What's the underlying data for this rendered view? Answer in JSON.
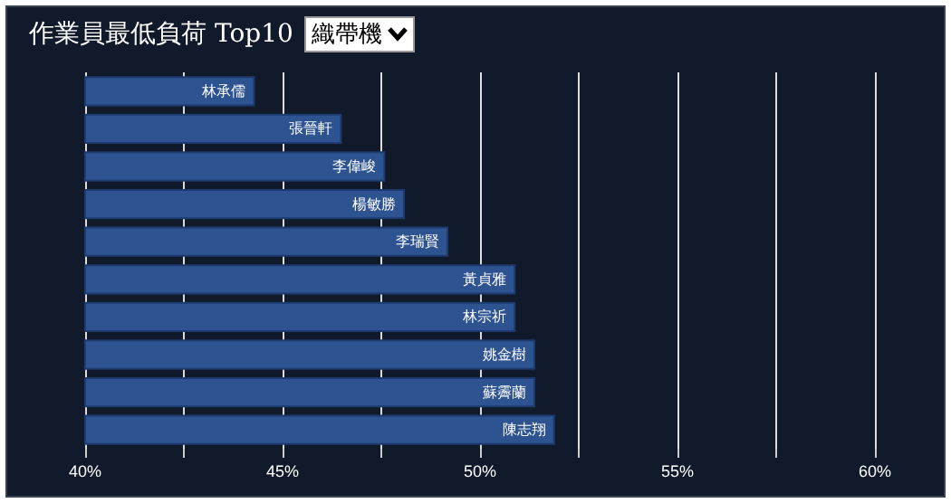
{
  "chart_data": {
    "type": "bar",
    "orientation": "horizontal",
    "title": "作業員最低負荷 Top10",
    "annotations": [
      "織帶機"
    ],
    "categories": [
      "林承儒",
      "張晉軒",
      "李偉峻",
      "楊敏勝",
      "李瑞賢",
      "黃貞雅",
      "林宗祈",
      "姚金樹",
      "蘇霽蘭",
      "陳志翔"
    ],
    "values": [
      44.3,
      46.5,
      47.6,
      48.1,
      49.2,
      50.9,
      50.9,
      51.4,
      51.4,
      51.9
    ],
    "color": "#2e5391",
    "xlim": [
      40,
      60
    ],
    "xticks": [
      {
        "value": 40,
        "label": "40%"
      },
      {
        "value": 42.5,
        "label": null
      },
      {
        "value": 45,
        "label": "45%"
      },
      {
        "value": 47.5,
        "label": null
      },
      {
        "value": 50,
        "label": "50%"
      },
      {
        "value": 52.5,
        "label": null
      },
      {
        "value": 55,
        "label": "55%"
      },
      {
        "value": 57.5,
        "label": null
      },
      {
        "value": 60,
        "label": "60%"
      }
    ],
    "grid": "x"
  }
}
